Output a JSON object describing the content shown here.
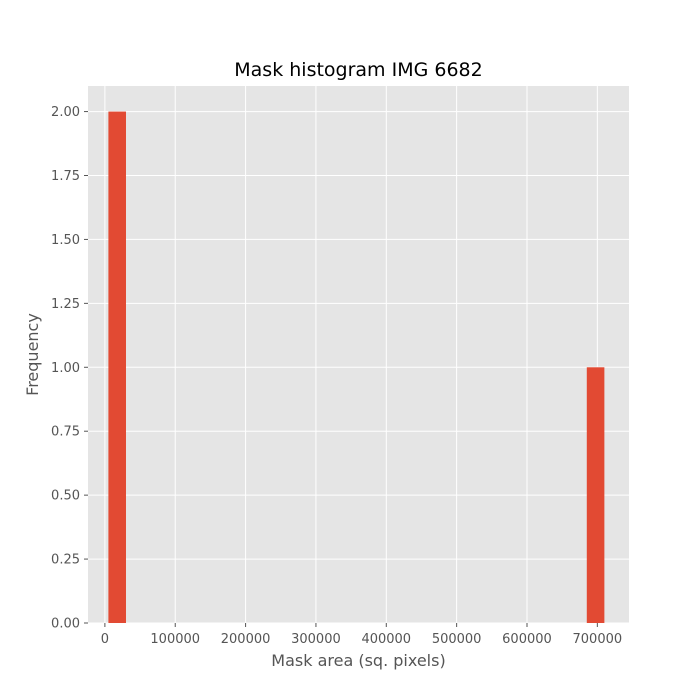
{
  "chart_data": {
    "type": "bar",
    "title": "Mask histogram IMG 6682",
    "xlabel": "Mask area (sq. pixels)",
    "ylabel": "Frequency",
    "xlim": [
      -24000,
      745000
    ],
    "ylim": [
      0,
      2.1
    ],
    "x_ticks": [
      0,
      100000,
      200000,
      300000,
      400000,
      500000,
      600000,
      700000
    ],
    "x_tick_labels": [
      "0",
      "100000",
      "200000",
      "300000",
      "400000",
      "500000",
      "600000",
      "700000"
    ],
    "y_ticks": [
      0,
      0.25,
      0.5,
      0.75,
      1.0,
      1.25,
      1.5,
      1.75,
      2.0
    ],
    "y_tick_labels": [
      "0.00",
      "0.25",
      "0.50",
      "0.75",
      "1.00",
      "1.25",
      "1.50",
      "1.75",
      "2.00"
    ],
    "bins": [
      {
        "start": 5000,
        "end": 30000,
        "count": 2
      },
      {
        "start": 685000,
        "end": 710000,
        "count": 1
      }
    ],
    "grid": true,
    "background_color": "#e5e5e5",
    "grid_color": "#ffffff",
    "bar_color": "#e24a33"
  }
}
